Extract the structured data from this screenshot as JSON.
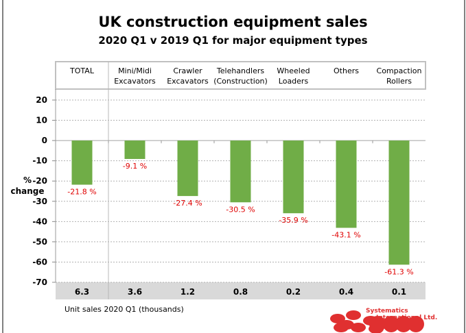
{
  "chart_data": {
    "type": "bar",
    "title": "UK construction equipment sales",
    "subtitle": "2020 Q1  v  2019 Q1  for major equipment types",
    "ylabel": [
      "%",
      "change"
    ],
    "ylim": [
      -70,
      20
    ],
    "yticks": [
      20,
      10,
      0,
      -10,
      -20,
      -30,
      -40,
      -50,
      -60,
      -70
    ],
    "grid": true,
    "categories": [
      [
        "TOTAL"
      ],
      [
        "Mini/Midi",
        "Excavators"
      ],
      [
        "Crawler",
        "Excavators"
      ],
      [
        "Telehandlers",
        "(Construction)"
      ],
      [
        "Wheeled",
        "Loaders"
      ],
      [
        "Others"
      ],
      [
        "Compaction",
        "Rollers"
      ]
    ],
    "values": [
      -21.8,
      -9.1,
      -27.4,
      -30.5,
      -35.9,
      -43.1,
      -61.3
    ],
    "data_labels": [
      "-21.8 %",
      "-9.1 %",
      "-27.4 %",
      "-30.5 %",
      "-35.9 %",
      "-43.1 %",
      "-61.3 %"
    ],
    "unit_sales": [
      "6.3",
      "3.6",
      "1.2",
      "0.8",
      "0.2",
      "0.4",
      "0.1"
    ],
    "unit_sales_label": "Unit sales 2020 Q1  (thousands)",
    "colors": {
      "bar": "#70AD47",
      "label": "#E00000",
      "band": "#D9D9D9"
    }
  },
  "logo": {
    "text": [
      "Systematics",
      "International Ltd."
    ],
    "color": "#E03030"
  }
}
